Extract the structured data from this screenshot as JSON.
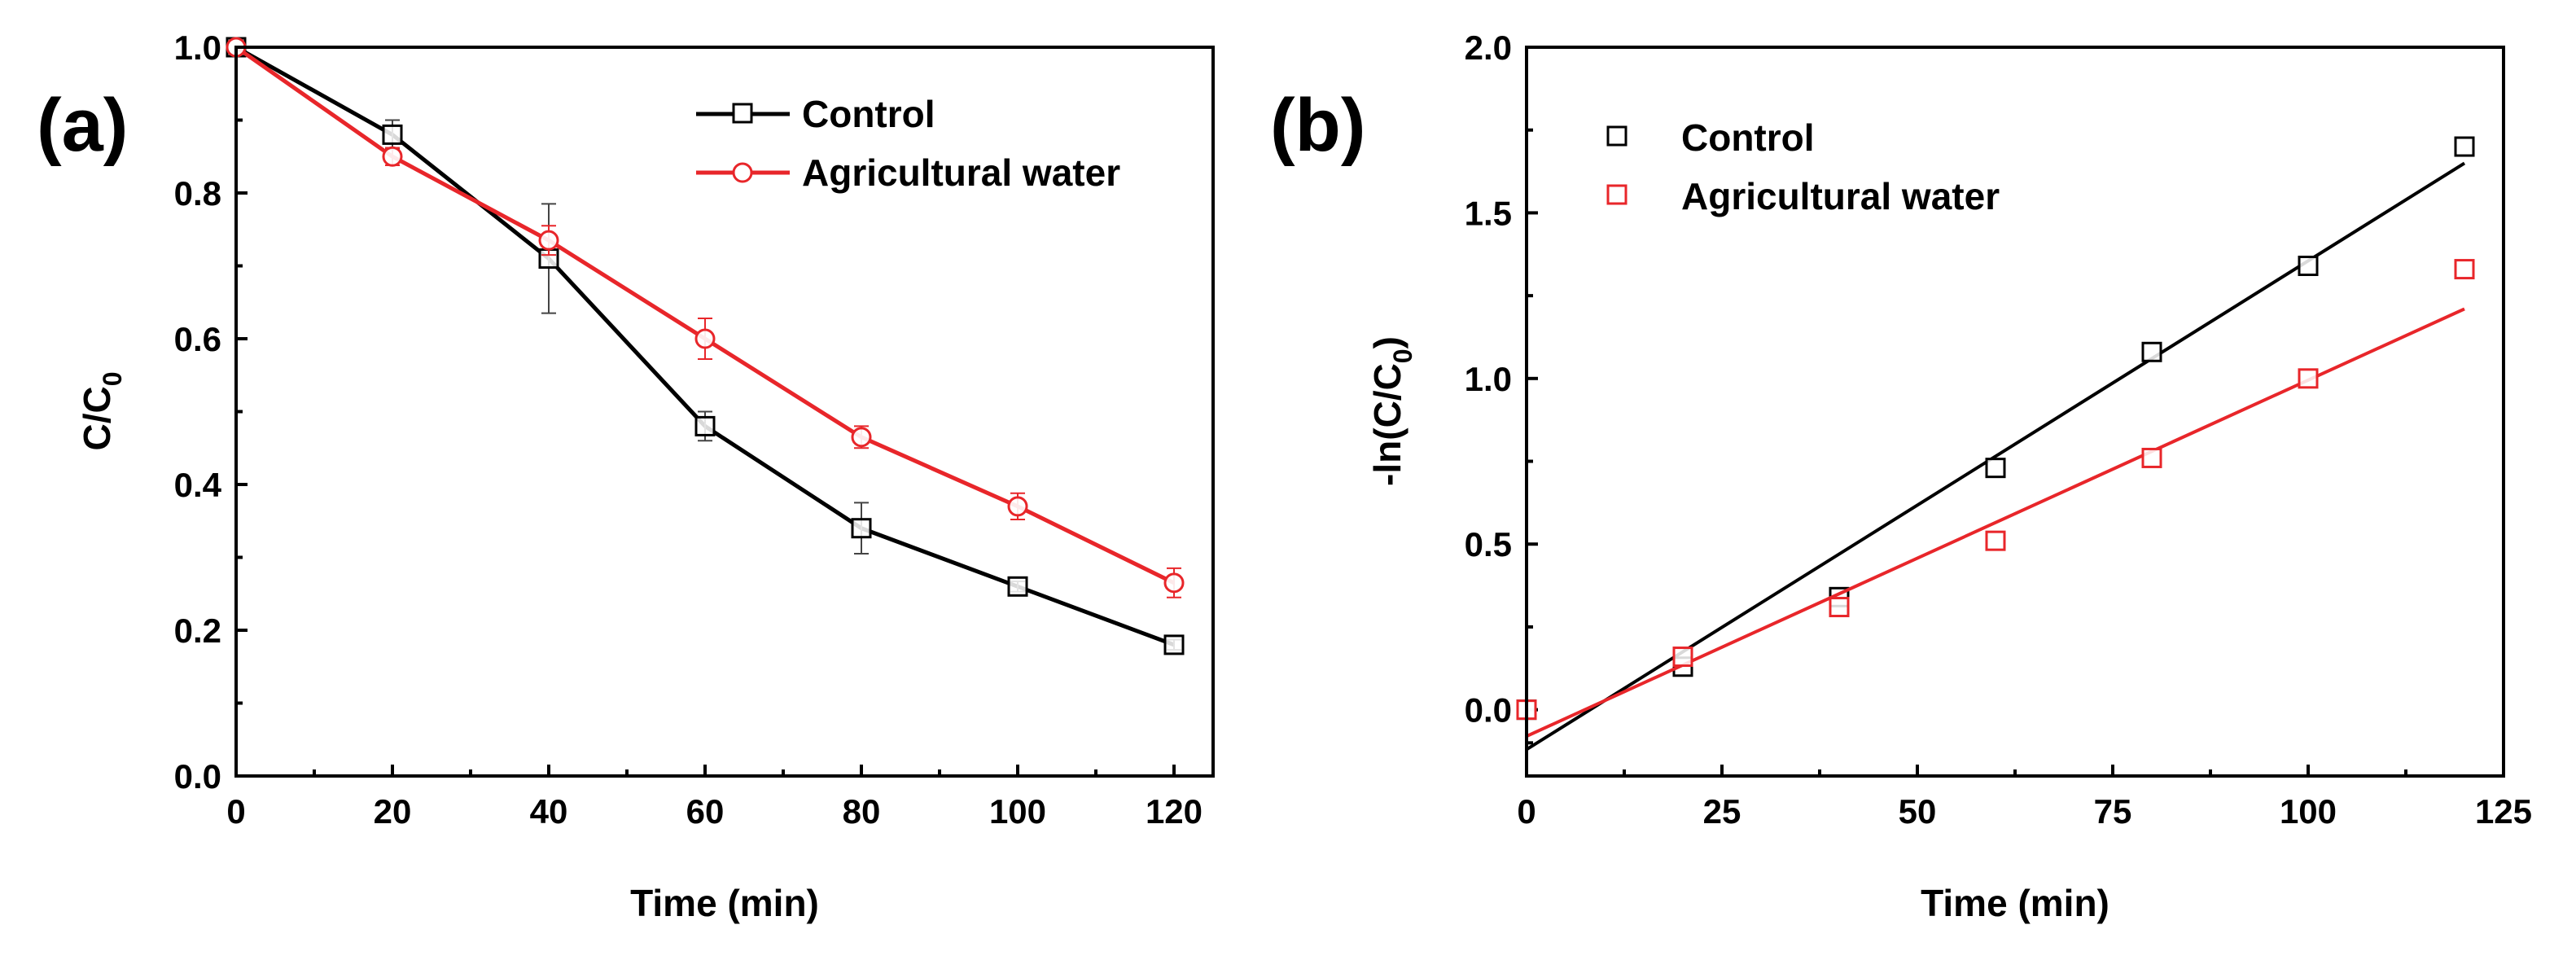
{
  "colors": {
    "control": "#000000",
    "agricultural": "#e8262a"
  },
  "chart_data": [
    {
      "id": "a",
      "type": "line",
      "panel_label": "(a)",
      "xlabel": "Time (min)",
      "ylabel_main": "C/C",
      "ylabel_sub": "0",
      "xlim": [
        0,
        125
      ],
      "ylim": [
        0,
        1.0
      ],
      "xticks": [
        0,
        20,
        40,
        60,
        80,
        100,
        120
      ],
      "xtick_labels": [
        "0",
        "20",
        "40",
        "60",
        "80",
        "100",
        "120"
      ],
      "yticks": [
        0.0,
        0.2,
        0.4,
        0.6,
        0.8,
        1.0
      ],
      "ytick_labels": [
        "0.0",
        "0.2",
        "0.4",
        "0.6",
        "0.8",
        "1.0"
      ],
      "legend_position": "top-right",
      "x": [
        0,
        20,
        40,
        60,
        80,
        100,
        120
      ],
      "series": [
        {
          "name": "Control",
          "color_key": "control",
          "marker": "square",
          "values": [
            1.0,
            0.88,
            0.71,
            0.48,
            0.34,
            0.26,
            0.18
          ],
          "errors": [
            0,
            0.02,
            0.075,
            0.02,
            0.035,
            0.007,
            0.007
          ]
        },
        {
          "name": "Agricultural water",
          "color_key": "agricultural",
          "marker": "circle",
          "values": [
            1.0,
            0.85,
            0.735,
            0.6,
            0.465,
            0.37,
            0.265
          ],
          "errors": [
            0,
            0.012,
            0.02,
            0.028,
            0.015,
            0.018,
            0.02
          ]
        }
      ]
    },
    {
      "id": "b",
      "type": "scatter",
      "panel_label": "(b)",
      "xlabel": "Time (min)",
      "ylabel_main": "-ln(C/C",
      "ylabel_sub": "0",
      "ylabel_end": ")",
      "xlim": [
        0,
        125
      ],
      "ylim": [
        -0.2,
        2.0
      ],
      "xticks": [
        0,
        25,
        50,
        75,
        100,
        125
      ],
      "xtick_labels": [
        "0",
        "25",
        "50",
        "75",
        "100",
        "125"
      ],
      "yticks": [
        0.0,
        0.5,
        1.0,
        1.5,
        2.0
      ],
      "ytick_labels": [
        "0.0",
        "0.5",
        "1.0",
        "1.5",
        "2.0"
      ],
      "legend_position": "top-left",
      "x": [
        0,
        20,
        40,
        60,
        80,
        100,
        120
      ],
      "series": [
        {
          "name": "Control",
          "color_key": "control",
          "marker": "square",
          "values": [
            0.0,
            0.13,
            0.34,
            0.73,
            1.08,
            1.34,
            1.7
          ],
          "fit": {
            "slope": 0.01475,
            "intercept": -0.12
          }
        },
        {
          "name": "Agricultural water",
          "color_key": "agricultural",
          "marker": "square",
          "values": [
            0.0,
            0.16,
            0.31,
            0.51,
            0.76,
            1.0,
            1.33
          ],
          "fit": {
            "slope": 0.01075,
            "intercept": -0.08
          }
        }
      ]
    }
  ]
}
